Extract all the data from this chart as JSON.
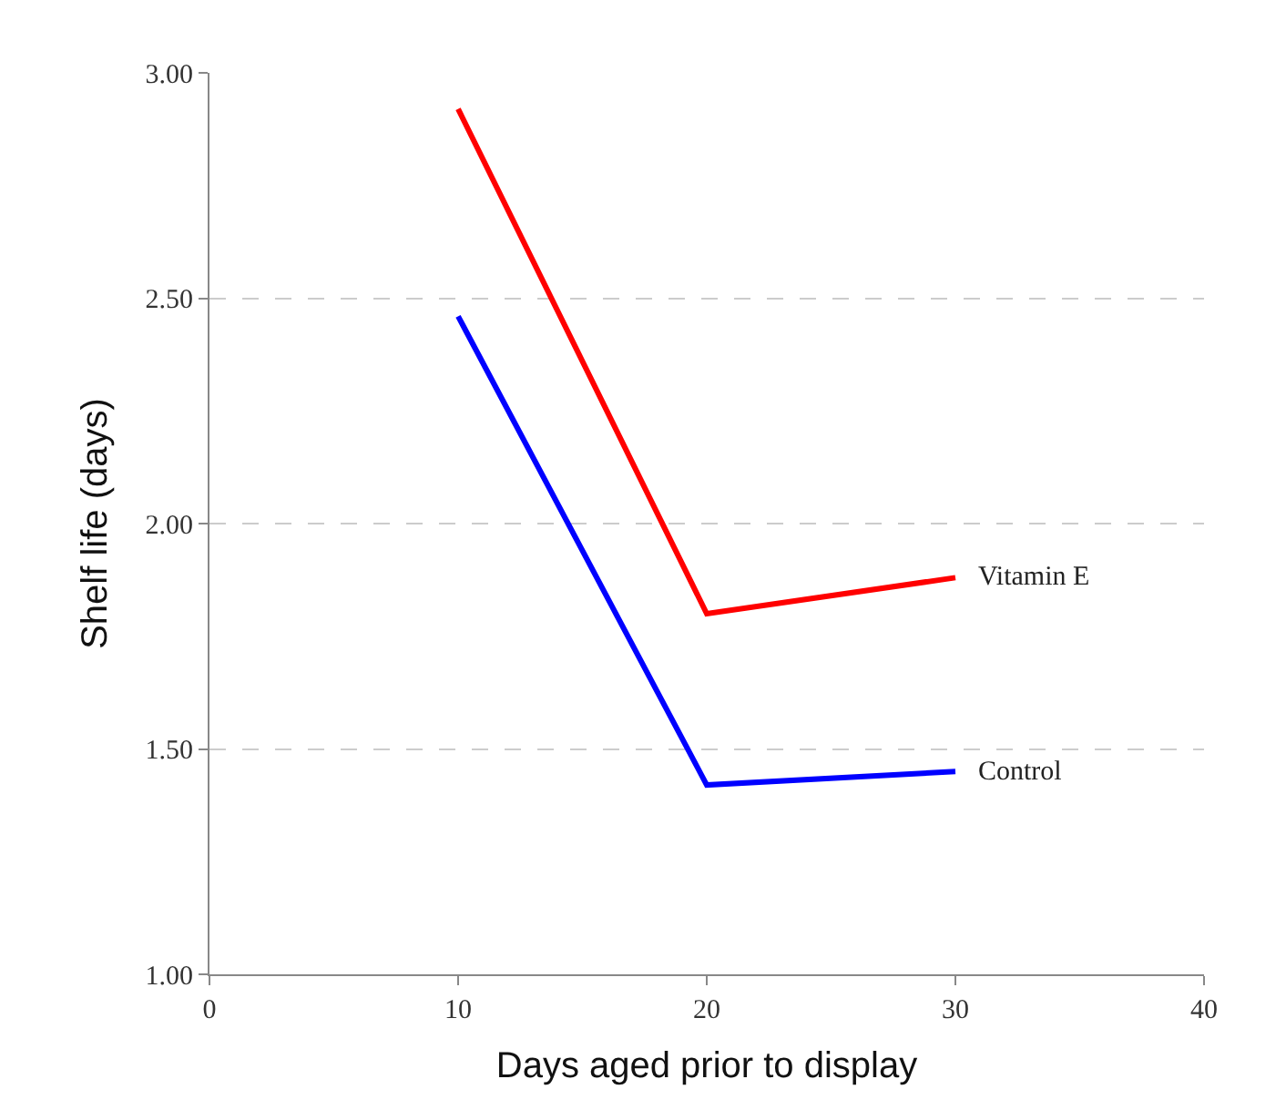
{
  "chart_data": {
    "type": "line",
    "xlabel": "Days aged prior to display",
    "ylabel": "Shelf life (days)",
    "x": [
      10,
      20,
      30
    ],
    "series": [
      {
        "name": "Vitamin E",
        "color": "#ff0000",
        "values": [
          2.92,
          1.8,
          1.88
        ]
      },
      {
        "name": "Control",
        "color": "#0000ff",
        "values": [
          2.46,
          1.42,
          1.45
        ]
      }
    ],
    "xlim": [
      0,
      40
    ],
    "xticks": [
      0,
      10,
      20,
      30,
      40
    ],
    "ylim": [
      1,
      3
    ],
    "yticks": [
      {
        "value": 1,
        "label": "1.00"
      },
      {
        "value": 1.5,
        "label": "1.50"
      },
      {
        "value": 2,
        "label": "2.00"
      },
      {
        "value": 2.5,
        "label": "2.50"
      },
      {
        "value": 3,
        "label": "3.00"
      }
    ],
    "grid": "y",
    "legend": false,
    "marker": "none",
    "line_style": "solid"
  }
}
